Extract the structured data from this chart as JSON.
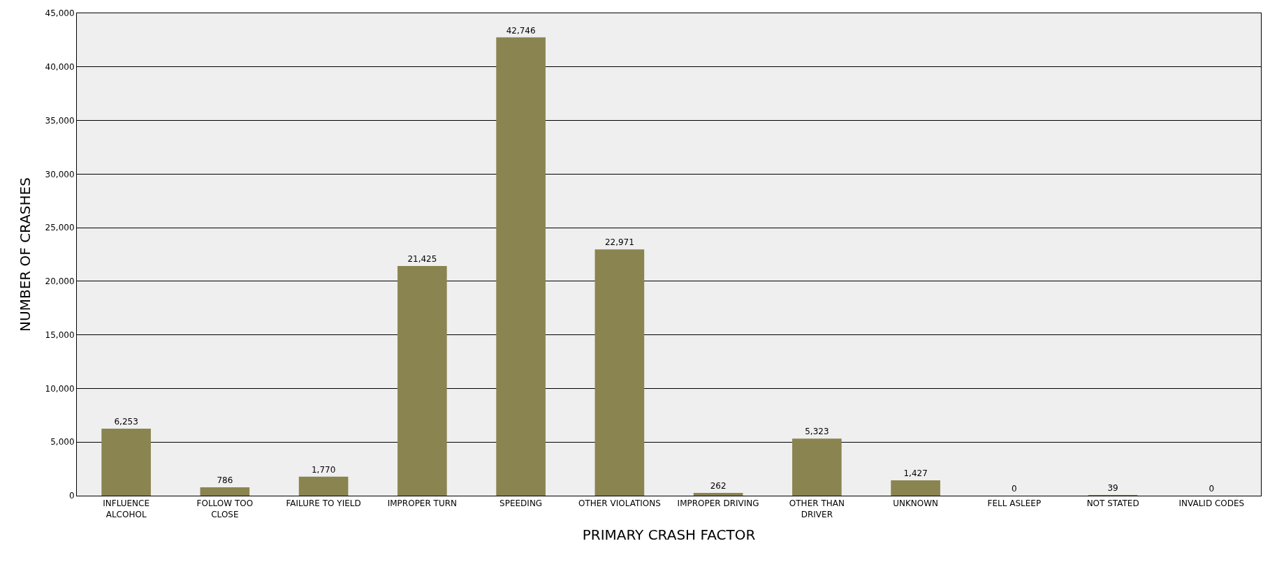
{
  "chart_data": {
    "type": "bar",
    "xlabel": "PRIMARY CRASH FACTOR",
    "ylabel": "NUMBER OF CRASHES",
    "categories": [
      "INFLUENCE\nALCOHOL",
      "FOLLOW TOO\nCLOSE",
      "FAILURE TO YIELD",
      "IMPROPER TURN",
      "SPEEDING",
      "OTHER VIOLATIONS",
      "IMPROPER DRIVING",
      "OTHER THAN\nDRIVER",
      "UNKNOWN",
      "FELL ASLEEP",
      "NOT STATED",
      "INVALID CODES"
    ],
    "values": [
      6253,
      786,
      1770,
      21425,
      42746,
      22971,
      262,
      5323,
      1427,
      0,
      39,
      0
    ],
    "value_labels": [
      "6,253",
      "786",
      "1,770",
      "21,425",
      "42,746",
      "22,971",
      "262",
      "5,323",
      "1,427",
      "0",
      "39",
      "0"
    ],
    "color": "#8a8450",
    "ylim": [
      0,
      45000
    ],
    "yticks": [
      {
        "value": 0,
        "label": "0"
      },
      {
        "value": 5000,
        "label": "5,000"
      },
      {
        "value": 10000,
        "label": "10,000"
      },
      {
        "value": 15000,
        "label": "15,000"
      },
      {
        "value": 20000,
        "label": "20,000"
      },
      {
        "value": 25000,
        "label": "25,000"
      },
      {
        "value": 30000,
        "label": "30,000"
      },
      {
        "value": 35000,
        "label": "35,000"
      },
      {
        "value": 40000,
        "label": "40,000"
      },
      {
        "value": 45000,
        "label": "45,000"
      }
    ],
    "grid": "y",
    "legend": false
  }
}
